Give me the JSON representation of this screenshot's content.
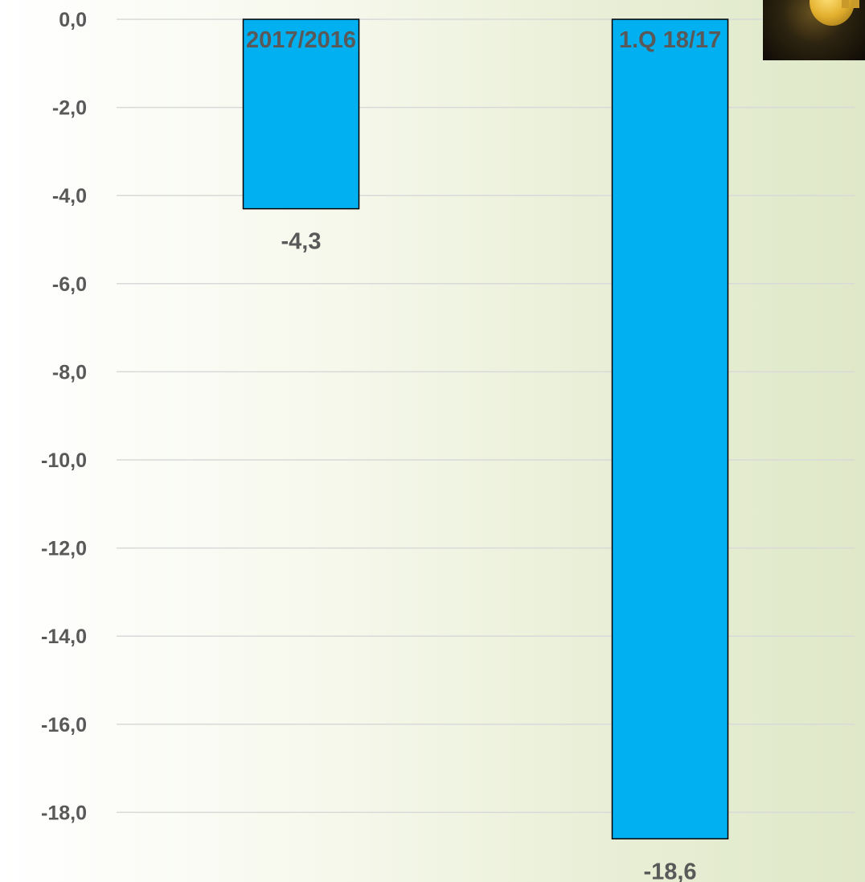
{
  "chart_data": {
    "type": "bar",
    "categories": [
      "2017/2016",
      "1.Q 18/17"
    ],
    "values": [
      -4.3,
      -18.6
    ],
    "value_labels": [
      "-4,3",
      "-18,6"
    ],
    "ylim": [
      -19.5,
      0
    ],
    "yticks": [
      0,
      -2,
      -4,
      -6,
      -8,
      -10,
      -12,
      -14,
      -16,
      -18
    ],
    "ytick_labels": [
      "0,0",
      "-2,0",
      "-4,0",
      "-6,0",
      "-8,0",
      "-10,0",
      "-12,0",
      "-14,0",
      "-16,0",
      "-18,0"
    ],
    "title": "",
    "xlabel": "",
    "ylabel": "",
    "grid": true,
    "bar_color": "#00b0f0",
    "category_label_position": "top"
  },
  "decor": {
    "corner_image": "dollar-coin-icon"
  }
}
